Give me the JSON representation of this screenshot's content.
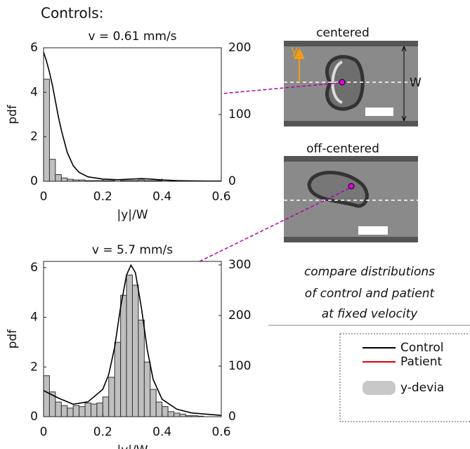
{
  "header": "Controls:",
  "chart_data": [
    {
      "type": "histogram",
      "title": "v = 0.61 mm/s",
      "xlabel": "|y|/W",
      "ylabel": "pdf",
      "bins": [
        0,
        0.02,
        0.04,
        0.06,
        0.08,
        0.1,
        0.12,
        0.14,
        0.16,
        0.18,
        0.2,
        0.22,
        0.24,
        0.26,
        0.28,
        0.3,
        0.32,
        0.34,
        0.36,
        0.38,
        0.4,
        0.42,
        0.44,
        0.46,
        0.48,
        0.5,
        0.52,
        0.54,
        0.56,
        0.58,
        0.6
      ],
      "values": [
        153,
        33,
        10,
        5,
        3,
        2,
        2,
        1,
        1,
        1,
        1,
        1,
        0,
        1,
        1,
        1,
        2,
        1,
        1,
        1,
        0,
        0,
        0,
        0,
        0,
        0,
        0,
        0,
        0,
        0
      ],
      "axis": "y2",
      "color": "#bfbfbf",
      "line": {
        "x": [
          0,
          0.01,
          0.02,
          0.03,
          0.04,
          0.05,
          0.06,
          0.07,
          0.08,
          0.1,
          0.12,
          0.15,
          0.2,
          0.25,
          0.3,
          0.33,
          0.36,
          0.4,
          0.45,
          0.5,
          0.55,
          0.6
        ],
        "values": [
          5.8,
          5.4,
          4.9,
          4.3,
          3.6,
          2.9,
          2.3,
          1.8,
          1.3,
          0.7,
          0.4,
          0.2,
          0.1,
          0.07,
          0.1,
          0.12,
          0.1,
          0.06,
          0.03,
          0.02,
          0.01,
          0.01
        ],
        "color": "#000000"
      },
      "xlim": [
        0,
        0.6
      ],
      "xticks": [
        0,
        0.2,
        0.4,
        0.6
      ],
      "ylim": [
        0,
        6
      ],
      "yticks": [
        0,
        2,
        4,
        6
      ],
      "y2lim": [
        0,
        200
      ],
      "y2ticks": [
        0,
        100,
        200
      ]
    },
    {
      "type": "histogram",
      "title": "v = 5.7 mm/s",
      "xlabel": "|y|/W",
      "ylabel": "pdf",
      "bins": [
        0,
        0.02,
        0.04,
        0.06,
        0.08,
        0.1,
        0.12,
        0.14,
        0.16,
        0.18,
        0.2,
        0.22,
        0.24,
        0.26,
        0.28,
        0.3,
        0.32,
        0.34,
        0.36,
        0.38,
        0.4,
        0.42,
        0.44,
        0.46,
        0.48,
        0.5,
        0.52,
        0.54,
        0.56,
        0.58,
        0.6
      ],
      "values": [
        81,
        49,
        29,
        22,
        17,
        22,
        20,
        27,
        25,
        27,
        39,
        78,
        147,
        240,
        280,
        260,
        191,
        108,
        54,
        29,
        20,
        10,
        7,
        5,
        2,
        2,
        1,
        0,
        0,
        0
      ],
      "axis": "y2",
      "color": "#bfbfbf",
      "line": {
        "x": [
          0,
          0.05,
          0.1,
          0.15,
          0.2,
          0.22,
          0.24,
          0.26,
          0.28,
          0.295,
          0.31,
          0.33,
          0.35,
          0.37,
          0.4,
          0.45,
          0.5,
          0.6
        ],
        "values": [
          1.05,
          0.75,
          0.5,
          0.6,
          1.1,
          1.7,
          2.8,
          4.4,
          5.7,
          6.1,
          5.8,
          4.4,
          2.7,
          1.5,
          0.7,
          0.3,
          0.15,
          0.05
        ],
        "color": "#000000"
      },
      "xlim": [
        0,
        0.6
      ],
      "xticks": [
        0,
        0.2,
        0.4,
        0.6
      ],
      "ylim": [
        0,
        6.25
      ],
      "yticks": [
        0,
        2,
        4,
        6
      ],
      "y2lim": [
        0,
        307
      ],
      "y2ticks": [
        0,
        100,
        200,
        300
      ]
    }
  ],
  "images": [
    {
      "label": "centered",
      "dimension_label": "W",
      "axis_label": "y"
    },
    {
      "label": "off-centered"
    }
  ],
  "note": [
    "compare distributions",
    "of control and patient",
    "at fixed velocity"
  ],
  "legend": [
    {
      "name": "Control",
      "color": "#000000"
    },
    {
      "name": "Patient",
      "color": "#e00000"
    },
    {
      "name": "y-devia",
      "color": "#c8c8c8"
    }
  ]
}
